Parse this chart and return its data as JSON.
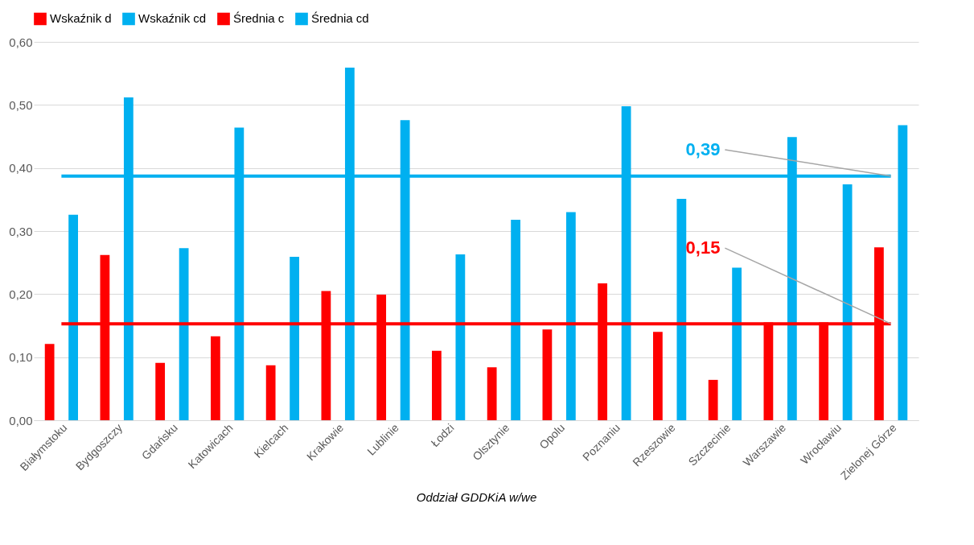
{
  "chart_data": {
    "type": "bar",
    "xlabel": "Oddział GDDKiA w/we",
    "categories": [
      "Białymstoku",
      "Bydgoszczy",
      "Gdańsku",
      "Katowicach",
      "Kielcach",
      "Krakowie",
      "Lublinie",
      "Łodzi",
      "Olsztynie",
      "Opolu",
      "Poznaniu",
      "Rzeszowie",
      "Szczecinie",
      "Warszawie",
      "Wrocławiu",
      "Zielonej Górze"
    ],
    "series": [
      {
        "name": "Wskaźnik d",
        "color": "#ff0000",
        "values": [
          0.121,
          0.262,
          0.091,
          0.133,
          0.087,
          0.205,
          0.199,
          0.11,
          0.084,
          0.144,
          0.217,
          0.14,
          0.064,
          0.155,
          0.155,
          0.274
        ]
      },
      {
        "name": "Wskaźnik cd",
        "color": "#00b0f0",
        "values": [
          0.326,
          0.512,
          0.273,
          0.464,
          0.259,
          0.559,
          0.476,
          0.263,
          0.318,
          0.33,
          0.498,
          0.351,
          0.242,
          0.449,
          0.374,
          0.468
        ]
      },
      {
        "name": "Średnia c",
        "type": "line",
        "color": "#ff0000",
        "values": [
          0.153,
          0.153,
          0.153,
          0.153,
          0.153,
          0.153,
          0.153,
          0.153,
          0.153,
          0.153,
          0.153,
          0.153,
          0.153,
          0.153,
          0.153,
          0.153
        ]
      },
      {
        "name": "Średnia cd",
        "type": "line",
        "color": "#00b0f0",
        "values": [
          0.387,
          0.387,
          0.387,
          0.387,
          0.387,
          0.387,
          0.387,
          0.387,
          0.387,
          0.387,
          0.387,
          0.387,
          0.387,
          0.387,
          0.387,
          0.387
        ]
      }
    ],
    "annotations": [
      {
        "text": "0,39",
        "x": "Zielonej Górze",
        "y": 0.387
      },
      {
        "text": "0,15",
        "x": "Zielonej Górze",
        "y": 0.153
      }
    ],
    "ylim": [
      0,
      0.6
    ],
    "yticks": [
      {
        "value": 0,
        "label": "0,00"
      },
      {
        "value": 0.1,
        "label": "0,10"
      },
      {
        "value": 0.2,
        "label": "0,20"
      },
      {
        "value": 0.3,
        "label": "0,30"
      },
      {
        "value": 0.4,
        "label": "0,40"
      },
      {
        "value": 0.5,
        "label": "0,50"
      },
      {
        "value": 0.6,
        "label": "0,60"
      }
    ],
    "grid": "y",
    "legend": "top",
    "marker": "none",
    "line_style": "solid"
  }
}
